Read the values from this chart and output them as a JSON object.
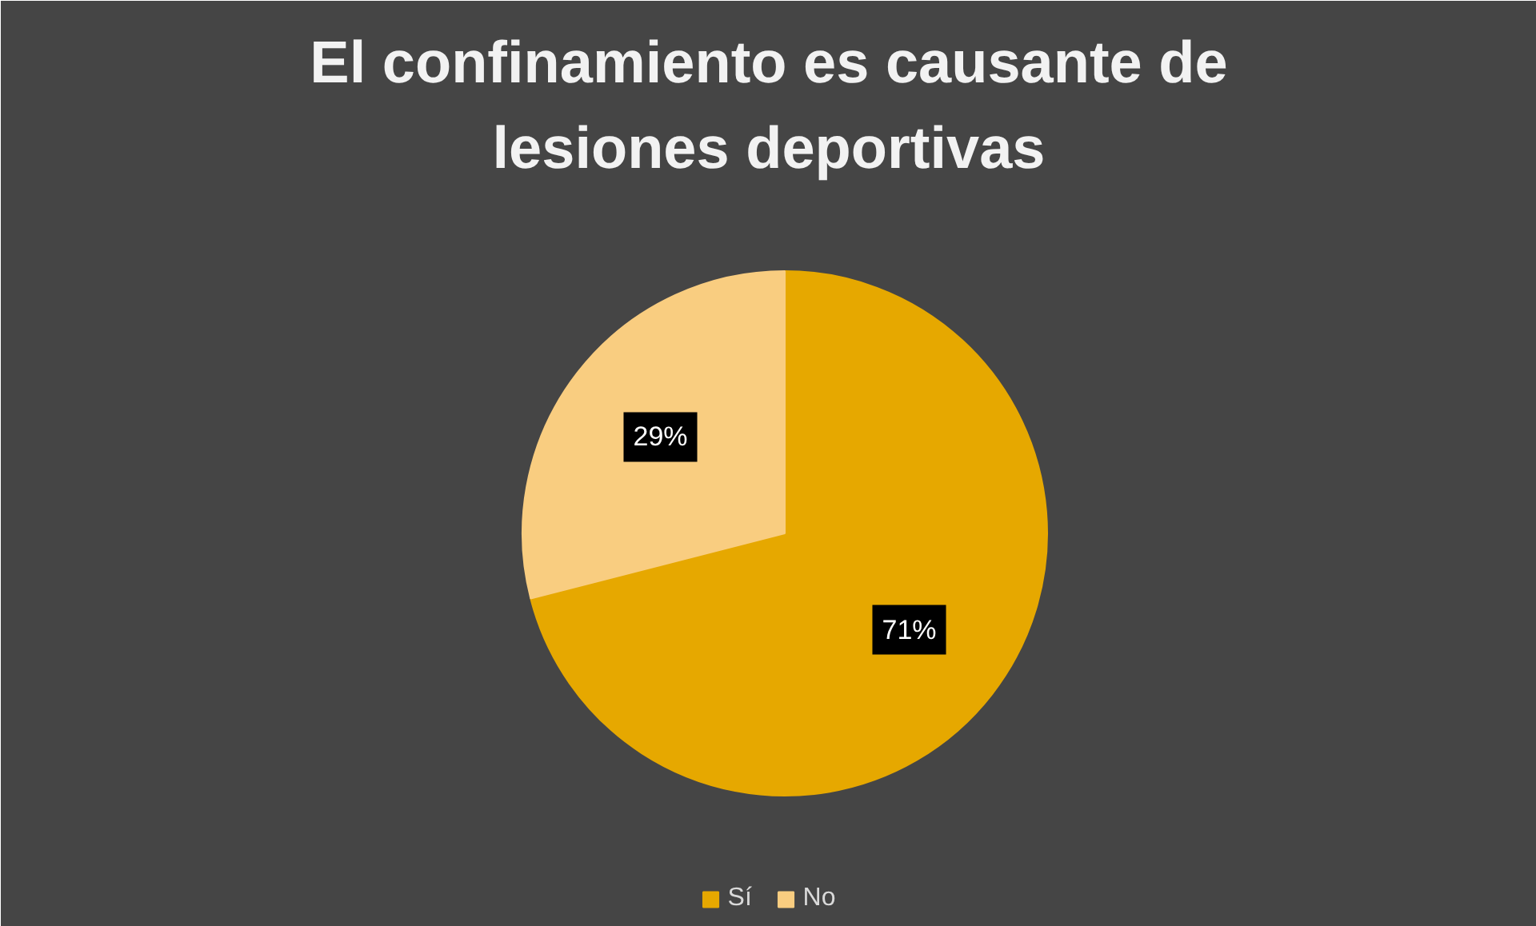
{
  "chart_data": {
    "type": "pie",
    "title": "El confinamiento es causante de\nlesiones deportivas",
    "categories": [
      "Sí",
      "No"
    ],
    "values": [
      71,
      29
    ],
    "colors": [
      "#e6a800",
      "#f9cd80"
    ],
    "value_labels": [
      "71%",
      "29%"
    ],
    "legend": "bottom"
  }
}
